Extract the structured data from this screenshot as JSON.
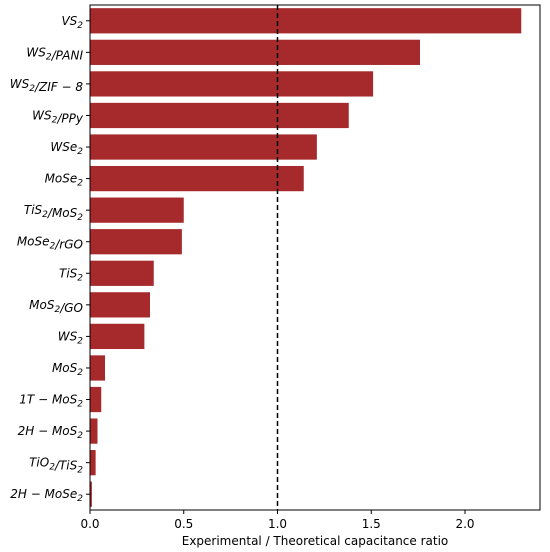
{
  "chart_data": {
    "type": "bar",
    "orientation": "horizontal",
    "xlabel": "Experimental / Theoretical capacitance ratio",
    "ylabel": "",
    "xlim": [
      0,
      2.4
    ],
    "xticks": [
      "0.0",
      "0.5",
      "1.0",
      "1.5",
      "2.0"
    ],
    "xtick_values": [
      0,
      0.5,
      1.0,
      1.5,
      2.0
    ],
    "reference_line": {
      "x": 1.0,
      "style": "dashed",
      "color": "#000000"
    },
    "bar_color": "#a62a2c",
    "grid": false,
    "categories": [
      {
        "base": "VS",
        "sub": "2",
        "rest": ""
      },
      {
        "base": "WS",
        "sub": "2",
        "rest": "/PANI"
      },
      {
        "base": "WS",
        "sub": "2",
        "rest": "/ZIF − 8"
      },
      {
        "base": "WS",
        "sub": "2",
        "rest": "/PPy"
      },
      {
        "base": "WSe",
        "sub": "2",
        "rest": ""
      },
      {
        "base": "MoSe",
        "sub": "2",
        "rest": ""
      },
      {
        "base": "TiS",
        "sub": "2",
        "rest": "/MoS",
        "sub2": "2"
      },
      {
        "base": "MoSe",
        "sub": "2",
        "rest": "/rGO"
      },
      {
        "base": "TiS",
        "sub": "2",
        "rest": ""
      },
      {
        "base": "MoS",
        "sub": "2",
        "rest": "/GO"
      },
      {
        "base": "WS",
        "sub": "2",
        "rest": ""
      },
      {
        "base": "MoS",
        "sub": "2",
        "rest": ""
      },
      {
        "base": "1T − MoS",
        "sub": "2",
        "rest": ""
      },
      {
        "base": "2H − MoS",
        "sub": "2",
        "rest": ""
      },
      {
        "base": "TiO",
        "sub": "2",
        "rest": "/TiS",
        "sub2": "2"
      },
      {
        "base": "2H − MoSe",
        "sub": "2",
        "rest": ""
      }
    ],
    "values": [
      2.3,
      1.76,
      1.51,
      1.38,
      1.21,
      1.14,
      0.5,
      0.49,
      0.34,
      0.32,
      0.29,
      0.08,
      0.06,
      0.04,
      0.03,
      0.01
    ]
  }
}
